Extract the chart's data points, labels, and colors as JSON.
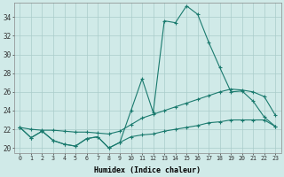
{
  "xlabel": "Humidex (Indice chaleur)",
  "bg_color": "#d0eae8",
  "grid_color": "#aaccca",
  "line_color": "#1a7a6e",
  "x_values": [
    0,
    1,
    2,
    3,
    4,
    5,
    6,
    7,
    8,
    9,
    10,
    11,
    12,
    13,
    14,
    15,
    16,
    17,
    18,
    19,
    20,
    21,
    22,
    23
  ],
  "y_main": [
    22.2,
    21.1,
    21.8,
    20.8,
    20.4,
    20.2,
    21.0,
    21.2,
    20.0,
    20.6,
    24.0,
    27.4,
    23.8,
    33.6,
    33.4,
    35.2,
    34.3,
    31.3,
    28.6,
    26.0,
    26.1,
    25.0,
    23.3,
    22.3
  ],
  "y_upper": [
    22.2,
    22.0,
    21.9,
    21.9,
    21.8,
    21.7,
    21.7,
    21.6,
    21.5,
    21.8,
    22.5,
    23.2,
    23.6,
    24.0,
    24.4,
    24.8,
    25.2,
    25.6,
    26.0,
    26.3,
    26.2,
    26.0,
    25.5,
    23.5
  ],
  "y_lower": [
    22.2,
    21.1,
    21.8,
    20.8,
    20.4,
    20.2,
    21.0,
    21.2,
    20.0,
    20.6,
    21.2,
    21.4,
    21.5,
    21.8,
    22.0,
    22.2,
    22.4,
    22.7,
    22.8,
    23.0,
    23.0,
    23.0,
    23.0,
    22.3
  ],
  "ylim": [
    19.5,
    35.5
  ],
  "yticks": [
    20,
    22,
    24,
    26,
    28,
    30,
    32,
    34
  ],
  "xticks": [
    0,
    1,
    2,
    3,
    4,
    5,
    6,
    7,
    8,
    9,
    10,
    11,
    12,
    13,
    14,
    15,
    16,
    17,
    18,
    19,
    20,
    21,
    22,
    23
  ],
  "xtick_labels": [
    "0",
    "1",
    "2",
    "3",
    "4",
    "5",
    "6",
    "7",
    "8",
    "9",
    "10",
    "11",
    "12",
    "13",
    "14",
    "15",
    "16",
    "17",
    "18",
    "19",
    "20",
    "21",
    "22",
    "23"
  ]
}
